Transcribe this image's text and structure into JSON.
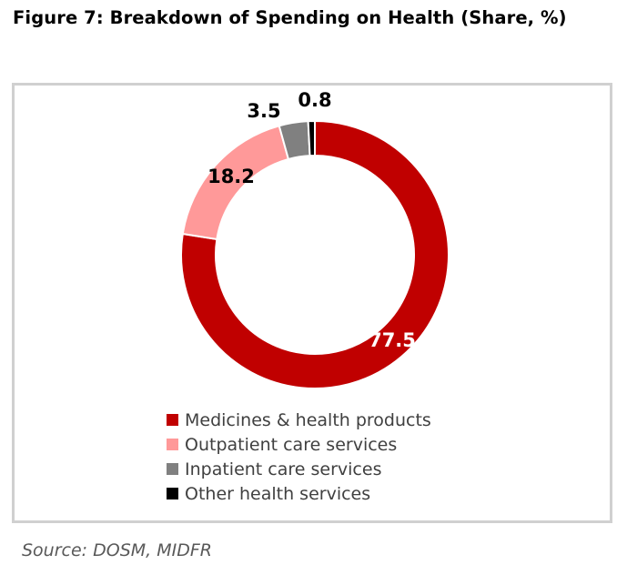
{
  "figure": {
    "title": "Figure 7: Breakdown of Spending on Health (Share, %)",
    "source": "Source: DOSM, MIDFR"
  },
  "chart_data": {
    "type": "pie",
    "title": "",
    "style": "donut",
    "slices": [
      {
        "name": "Medicines & health products",
        "value": 77.5,
        "label": "77.5",
        "color": "#c00000",
        "label_color": "#ffffff"
      },
      {
        "name": "Outpatient care services",
        "value": 18.2,
        "label": "18.2",
        "color": "#ff9999",
        "label_color": "#000000"
      },
      {
        "name": "Inpatient care services",
        "value": 3.5,
        "label": "3.5",
        "color": "#808080",
        "label_color": "#000000"
      },
      {
        "name": "Other health services",
        "value": 0.8,
        "label": "0.8",
        "color": "#000000",
        "label_color": "#000000"
      }
    ],
    "legend_position": "bottom",
    "slice_order": "clockwise from top"
  }
}
